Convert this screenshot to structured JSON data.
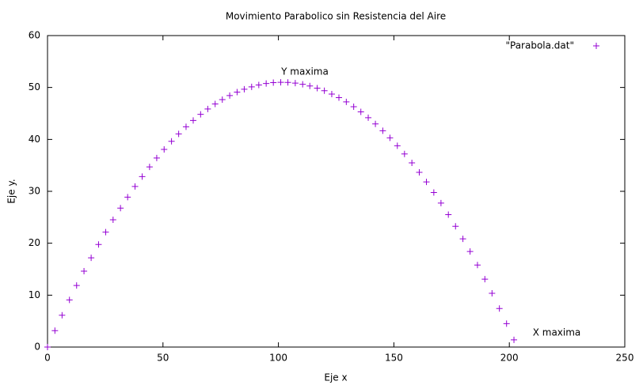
{
  "chart_data": {
    "type": "scatter",
    "title": "Movimiento Parabolico sin Resistencia del Aire",
    "x_label": "Eje x",
    "y_label": "Eje y.",
    "annotations": [
      "Y maxima",
      "X maxima"
    ],
    "legend": "top right",
    "grid": false,
    "xlim": [
      0,
      250
    ],
    "xticks": [
      0,
      50,
      100,
      150,
      200,
      250
    ],
    "ylim": [
      0,
      60
    ],
    "yticks": [
      0,
      10,
      20,
      30,
      40,
      50,
      60
    ],
    "series": [
      {
        "name": "\"Parabola.dat\"",
        "color": "#9400d3",
        "x": [
          0,
          3.2,
          6.3,
          9.5,
          12.6,
          15.8,
          18.9,
          22.1,
          25.2,
          28.4,
          31.6,
          34.7,
          37.9,
          41.0,
          44.2,
          47.3,
          50.5,
          53.7,
          56.8,
          60.0,
          63.1,
          66.3,
          69.4,
          72.6,
          75.7,
          78.9,
          82.1,
          85.2,
          88.4,
          91.5,
          94.7,
          97.8,
          101.0,
          104.1,
          107.3,
          110.5,
          113.6,
          116.8,
          119.9,
          123.1,
          126.2,
          129.4,
          132.6,
          135.7,
          138.9,
          142.0,
          145.2,
          148.3,
          151.5,
          154.6,
          157.8,
          161.0,
          164.1,
          167.3,
          170.4,
          173.6,
          176.7,
          179.9,
          183.0,
          186.2,
          189.4,
          192.5,
          195.7,
          198.8,
          202.0
        ],
        "values": [
          0,
          3.16,
          6.12,
          9.08,
          11.85,
          14.62,
          17.19,
          19.76,
          22.14,
          24.51,
          26.77,
          28.87,
          30.93,
          32.83,
          34.7,
          36.41,
          38.07,
          39.64,
          41.06,
          42.43,
          43.65,
          44.82,
          45.86,
          46.82,
          47.67,
          48.44,
          49.11,
          49.66,
          50.13,
          50.49,
          50.76,
          50.93,
          51.0,
          50.97,
          50.85,
          50.62,
          50.3,
          49.88,
          49.37,
          48.74,
          48.04,
          47.22,
          46.29,
          45.3,
          44.18,
          42.99,
          41.67,
          40.29,
          38.77,
          37.2,
          35.48,
          33.66,
          31.8,
          29.78,
          27.73,
          25.51,
          23.26,
          20.85,
          18.41,
          15.79,
          13.07,
          10.35,
          7.43,
          4.51,
          1.39
        ]
      }
    ]
  }
}
